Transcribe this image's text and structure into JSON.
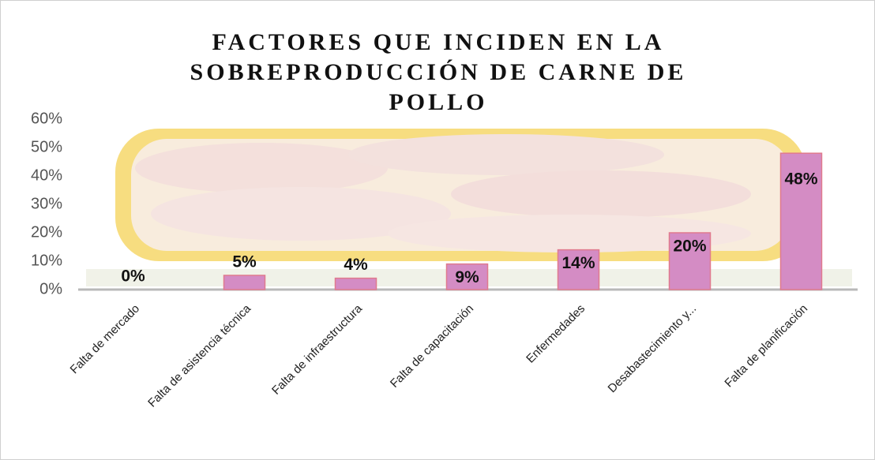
{
  "chart_data": {
    "type": "bar",
    "title": "FACTORES QUE INCIDEN EN LA SOBREPRODUCCIÓN DE CARNE DE POLLO",
    "categories": [
      "Falta de mercado",
      "Falta de asistencia técnica",
      "Falta de infraestructura",
      "Falta de capacitación",
      "Enfermedades",
      "Desabastecimiento y...",
      "Falta de planificación"
    ],
    "values": [
      0,
      5,
      4,
      9,
      14,
      20,
      48
    ],
    "value_labels": [
      "0%",
      "5%",
      "4%",
      "9%",
      "14%",
      "20%",
      "48%"
    ],
    "color": "#d48cc4",
    "ylim": [
      0,
      60
    ],
    "yticks": [
      {
        "value": 0,
        "label": "0%"
      },
      {
        "value": 10,
        "label": "10%"
      },
      {
        "value": 20,
        "label": "20%"
      },
      {
        "value": 30,
        "label": "30%"
      },
      {
        "value": 40,
        "label": "40%"
      },
      {
        "value": 50,
        "label": "50%"
      },
      {
        "value": 60,
        "label": "60%"
      }
    ],
    "grid": false
  }
}
